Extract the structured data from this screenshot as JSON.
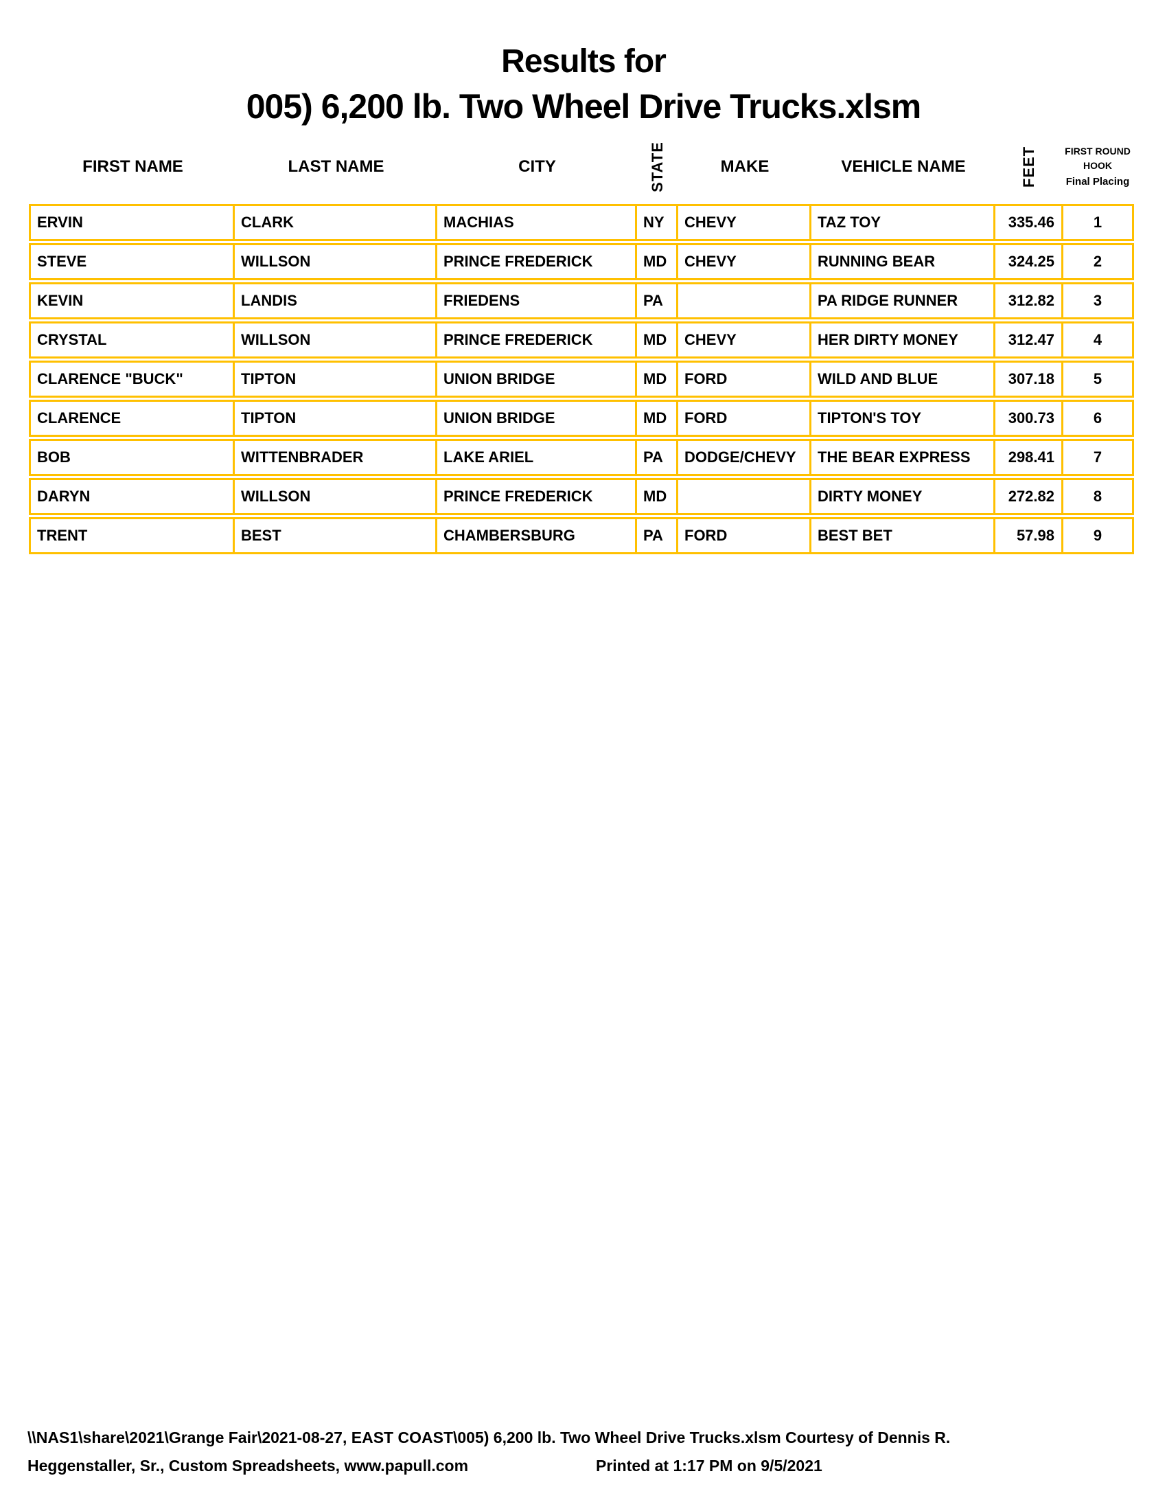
{
  "page": {
    "title_line1": "Results for",
    "title_line2": "005) 6,200 lb. Two Wheel Drive Trucks.xlsm"
  },
  "colors": {
    "grid": "#FFC000",
    "text": "#000000",
    "background": "#FFFFFF"
  },
  "table": {
    "headers": {
      "first_name": "FIRST NAME",
      "last_name": "LAST NAME",
      "city": "CITY",
      "state": "STATE",
      "make": "MAKE",
      "vehicle_name": "VEHICLE NAME",
      "feet": "FEET",
      "placing_lines": [
        "FIRST ROUND",
        "HOOK",
        "Final Placing"
      ]
    },
    "rows": [
      {
        "first_name": "ERVIN",
        "last_name": "CLARK",
        "city": "MACHIAS",
        "state": "NY",
        "make": "CHEVY",
        "vehicle_name": "TAZ TOY",
        "feet": "335.46",
        "placing": "1"
      },
      {
        "first_name": "STEVE",
        "last_name": "WILLSON",
        "city": "PRINCE FREDERICK",
        "state": "MD",
        "make": "CHEVY",
        "vehicle_name": "RUNNING BEAR",
        "feet": "324.25",
        "placing": "2"
      },
      {
        "first_name": "KEVIN",
        "last_name": "LANDIS",
        "city": "FRIEDENS",
        "state": "PA",
        "make": "",
        "vehicle_name": "PA RIDGE RUNNER",
        "feet": "312.82",
        "placing": "3"
      },
      {
        "first_name": "CRYSTAL",
        "last_name": "WILLSON",
        "city": "PRINCE FREDERICK",
        "state": "MD",
        "make": "CHEVY",
        "vehicle_name": "HER DIRTY MONEY",
        "feet": "312.47",
        "placing": "4"
      },
      {
        "first_name": "CLARENCE \"BUCK\"",
        "last_name": "TIPTON",
        "city": "UNION BRIDGE",
        "state": "MD",
        "make": "FORD",
        "vehicle_name": "WILD AND BLUE",
        "feet": "307.18",
        "placing": "5"
      },
      {
        "first_name": "CLARENCE",
        "last_name": "TIPTON",
        "city": "UNION BRIDGE",
        "state": "MD",
        "make": "FORD",
        "vehicle_name": "TIPTON'S TOY",
        "feet": "300.73",
        "placing": "6"
      },
      {
        "first_name": "BOB",
        "last_name": "WITTENBRADER",
        "city": "LAKE ARIEL",
        "state": "PA",
        "make": "DODGE/CHEVY",
        "vehicle_name": "THE BEAR EXPRESS",
        "feet": "298.41",
        "placing": "7"
      },
      {
        "first_name": "DARYN",
        "last_name": "WILLSON",
        "city": "PRINCE FREDERICK",
        "state": "MD",
        "make": "",
        "vehicle_name": "DIRTY MONEY",
        "feet": "272.82",
        "placing": "8"
      },
      {
        "first_name": "TRENT",
        "last_name": "BEST",
        "city": "CHAMBERSBURG",
        "state": "PA",
        "make": "FORD",
        "vehicle_name": "BEST BET",
        "feet": "57.98",
        "placing": "9"
      }
    ]
  },
  "footer": {
    "line1": "\\\\NAS1\\share\\2021\\Grange Fair\\2021-08-27, EAST COAST\\005) 6,200 lb. Two Wheel Drive Trucks.xlsm  Courtesy of Dennis R.",
    "line2": "Heggenstaller, Sr., Custom Spreadsheets, www.papull.com",
    "printed": "Printed at 1:17 PM on 9/5/2021"
  }
}
